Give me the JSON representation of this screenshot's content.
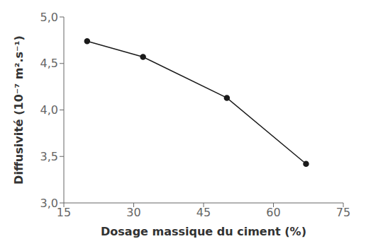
{
  "chart_data": {
    "type": "line",
    "x": [
      20,
      32,
      50,
      67
    ],
    "values": [
      4.74,
      4.57,
      4.13,
      3.42
    ],
    "color": "#1a1a1a",
    "marker": "circle",
    "xlim": [
      15,
      75
    ],
    "ylim": [
      3.0,
      5.0
    ],
    "xticks": [
      15,
      30,
      45,
      60,
      75
    ],
    "yticks": [
      {
        "value": 3.0,
        "label": "3,0"
      },
      {
        "value": 3.5,
        "label": "3,5"
      },
      {
        "value": 4.0,
        "label": "4,0"
      },
      {
        "value": 4.5,
        "label": "4,5"
      },
      {
        "value": 5.0,
        "label": "5,0"
      }
    ],
    "xlabel": "Dosage massique du ciment (%)",
    "ylabel": "Diffusivité (10⁻⁷ m².s⁻¹)",
    "grid": false
  }
}
